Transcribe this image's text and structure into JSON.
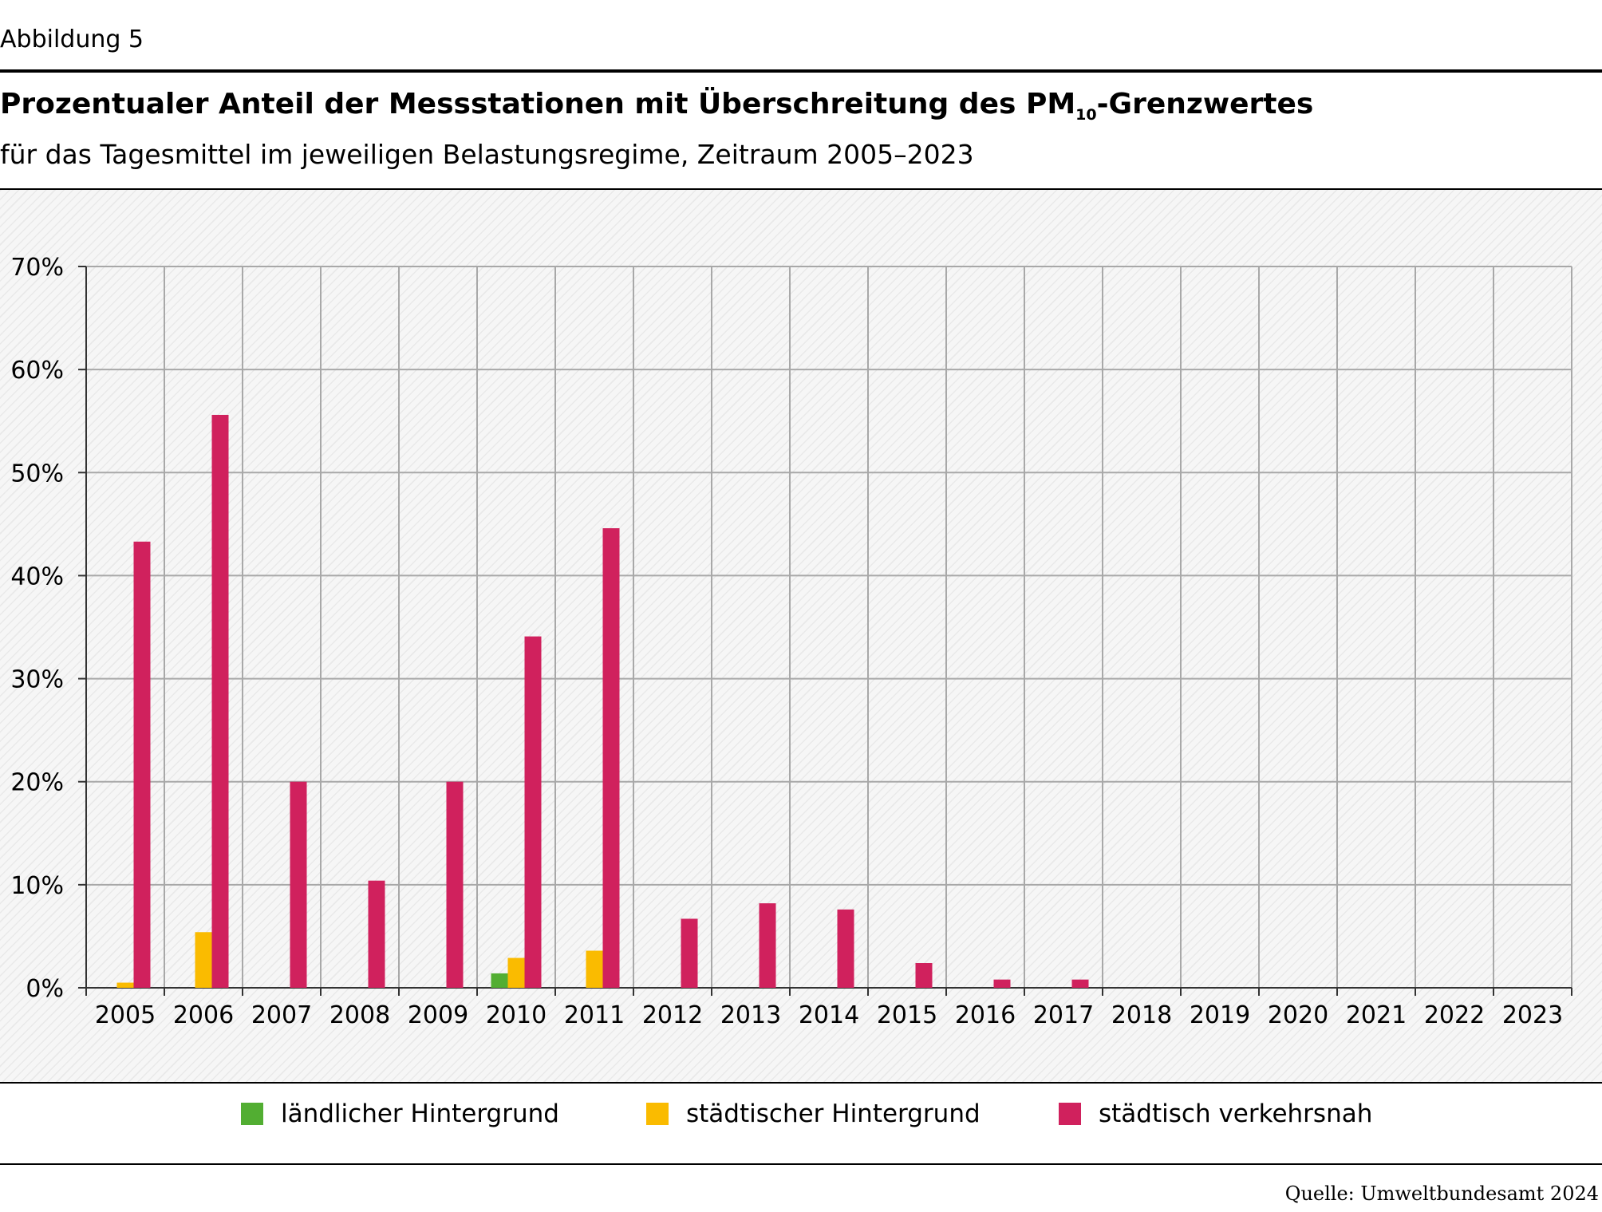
{
  "header": {
    "figure_label": "Abbildung 5",
    "title_main": "Prozentualer Anteil der Messstationen mit Überschreitung des PM",
    "title_sub": "10",
    "title_end": "-Grenzwertes",
    "subtitle": "für das Tagesmittel im jeweiligen Belastungsregime, Zeitraum 2005–2023"
  },
  "chart_data": {
    "type": "bar",
    "title": "Prozentualer Anteil der Messstationen mit Überschreitung des PM10-Grenzwertes",
    "subtitle": "für das Tagesmittel im jeweiligen Belastungsregime, Zeitraum 2005–2023",
    "xlabel": "",
    "ylabel": "",
    "ylim": [
      0,
      70
    ],
    "yticks": [
      0,
      10,
      20,
      30,
      40,
      50,
      60,
      70
    ],
    "ytick_labels": [
      "0%",
      "10%",
      "20%",
      "30%",
      "40%",
      "50%",
      "60%",
      "70%"
    ],
    "grid": true,
    "legend_position": "bottom",
    "categories": [
      "2005",
      "2006",
      "2007",
      "2008",
      "2009",
      "2010",
      "2011",
      "2012",
      "2013",
      "2014",
      "2015",
      "2016",
      "2017",
      "2018",
      "2019",
      "2020",
      "2021",
      "2022",
      "2023"
    ],
    "series": [
      {
        "name": "ländlicher Hintergrund",
        "color": "#52ae32",
        "values": [
          0,
          0,
          0,
          0,
          0,
          1.4,
          0,
          0,
          0,
          0,
          0,
          0,
          0,
          0,
          0,
          0,
          0,
          0,
          0
        ]
      },
      {
        "name": "städtischer Hintergrund",
        "color": "#fabb00",
        "values": [
          0.5,
          5.4,
          0,
          0,
          0,
          2.9,
          3.6,
          0,
          0,
          0,
          0,
          0,
          0,
          0,
          0,
          0,
          0,
          0,
          0
        ]
      },
      {
        "name": "städtisch verkehrsnah",
        "color": "#d0215d",
        "values": [
          43.3,
          55.6,
          20.0,
          10.4,
          20.0,
          34.1,
          44.6,
          6.7,
          8.2,
          7.6,
          2.4,
          0.8,
          0.8,
          0,
          0,
          0,
          0,
          0,
          0
        ]
      }
    ]
  },
  "source": "Quelle: Umweltbundesamt 2024"
}
